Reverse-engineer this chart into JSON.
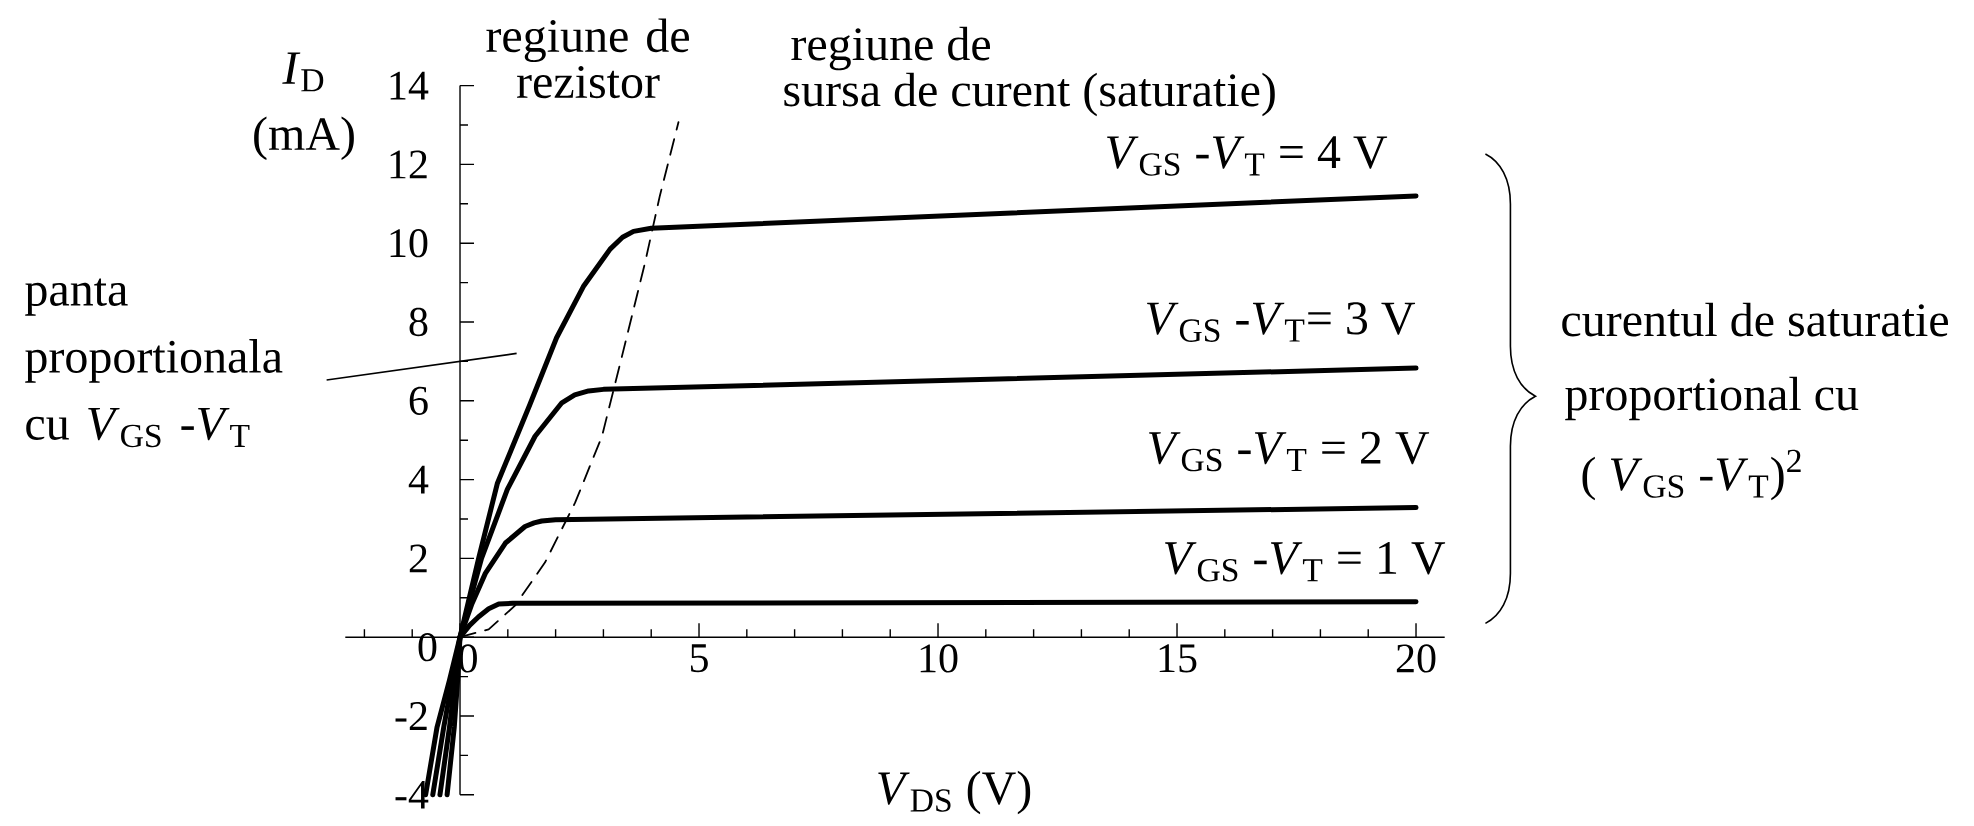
{
  "chart_data": {
    "type": "line",
    "xlabel": "*V*$_{DS}$ (V)",
    "ylabel": "*I*$_{D}$ (mA)",
    "xlim": [
      -2.4,
      20.6
    ],
    "ylim": [
      -4,
      14
    ],
    "xticks": [
      {
        "value": -2,
        "label": null
      },
      {
        "value": -1,
        "label": null
      },
      0,
      {
        "value": 1,
        "label": null
      },
      {
        "value": 2,
        "label": null
      },
      {
        "value": 3,
        "label": null
      },
      {
        "value": 4,
        "label": null
      },
      5,
      {
        "value": 6,
        "label": null
      },
      {
        "value": 7,
        "label": null
      },
      {
        "value": 8,
        "label": null
      },
      {
        "value": 9,
        "label": null
      },
      10,
      {
        "value": 11,
        "label": null
      },
      {
        "value": 12,
        "label": null
      },
      {
        "value": 13,
        "label": null
      },
      {
        "value": 14,
        "label": null
      },
      15,
      {
        "value": 16,
        "label": null
      },
      {
        "value": 17,
        "label": null
      },
      {
        "value": 18,
        "label": null
      },
      {
        "value": 19,
        "label": null
      },
      20
    ],
    "yticks": [
      -4,
      {
        "value": -3,
        "label": null
      },
      -2,
      {
        "value": -1,
        "label": null
      },
      0,
      {
        "value": 1,
        "label": null
      },
      2,
      {
        "value": 3,
        "label": null
      },
      4,
      {
        "value": 5,
        "label": null
      },
      6,
      {
        "value": 7,
        "label": null
      },
      8,
      {
        "value": 9,
        "label": null
      },
      10,
      {
        "value": 11,
        "label": null
      },
      12,
      {
        "value": 13,
        "label": null
      },
      14
    ],
    "series": [
      {
        "name": "*V*$_{GS}$ -*V*$_{T}$ = 4 V",
        "color": "#000000",
        "x": [
          -0.27,
          -0.12,
          -0.05,
          0,
          0.39,
          0.78,
          1.46,
          2.02,
          2.58,
          3.14,
          3.4,
          3.63,
          4.0,
          20
        ],
        "values": [
          -4,
          -2.28,
          -1.09,
          0,
          2,
          3.9,
          5.9,
          7.6,
          8.9,
          9.85,
          10.15,
          10.3,
          10.38,
          11.2
        ]
      },
      {
        "name": "*V*$_{GS}$ -*V*$_{T}$= 3 V",
        "color": "#000000",
        "x": [
          -0.42,
          -0.22,
          -0.1,
          0,
          0.45,
          0.99,
          1.57,
          2.13,
          2.4,
          2.69,
          3.0,
          20
        ],
        "values": [
          -4,
          -2.28,
          -1.09,
          0,
          2,
          3.75,
          5.1,
          5.95,
          6.15,
          6.25,
          6.29,
          6.83
        ]
      },
      {
        "name": "*V*$_{GS}$ -*V*$_{T}$ = 2 V",
        "color": "#000000",
        "x": [
          -0.57,
          -0.34,
          -0.16,
          0,
          0.25,
          0.53,
          0.95,
          1.36,
          1.55,
          1.71,
          2.0,
          20
        ],
        "values": [
          -4,
          -2.28,
          -1.09,
          0,
          0.85,
          1.62,
          2.39,
          2.81,
          2.9,
          2.95,
          2.98,
          3.29
        ]
      },
      {
        "name": "*V*$_{GS}$ -*V*$_{T}$ = 1 V",
        "color": "#000000",
        "x": [
          -0.72,
          -0.48,
          -0.22,
          0,
          0.2,
          0.39,
          0.6,
          0.81,
          1.1,
          20
        ],
        "values": [
          -4,
          -2.28,
          -1.09,
          0,
          0.3,
          0.52,
          0.72,
          0.84,
          0.86,
          0.9
        ]
      },
      {
        "color": "#000000",
        "line_style": "dashed",
        "x": [
          0,
          0.6,
          1.15,
          1.78,
          2.41,
          2.97,
          3.39,
          3.87,
          4.18,
          4.57
        ],
        "values": [
          0,
          0.2,
          0.8,
          1.9,
          3.42,
          5.1,
          7.14,
          9.5,
          11.2,
          13.07
        ]
      }
    ],
    "annotations": [
      "regiune de rezistor",
      "regiune de",
      "sursa de curent (saturatie)",
      "panta proportionala cu *V*$_{GS}$ -*V*$_{T}$",
      "curentul de saturatie",
      "proportional cu",
      "( *V*$_{GS}$ -*V*$_{T}$)$^{2}$"
    ]
  }
}
